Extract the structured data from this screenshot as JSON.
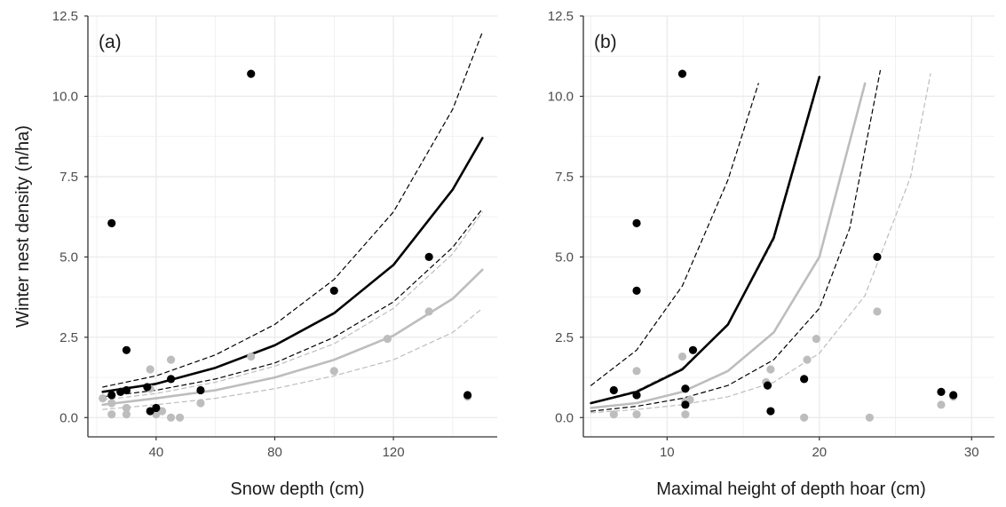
{
  "colors": {
    "group_a": "#000000",
    "group_b": "#bdbdbd",
    "grid": "#ebebeb",
    "axis": "#333333"
  },
  "shared": {
    "ylabel": "Winter nest density (n/ha)"
  },
  "chart_data": [
    {
      "type": "scatter",
      "panel_label": "(a)",
      "xlabel": "Snow depth (cm)",
      "ylabel": "Winter nest density (n/ha)",
      "xlim": [
        17,
        155
      ],
      "ylim": [
        -0.6,
        12.5
      ],
      "x_ticks": [
        40,
        80,
        120
      ],
      "y_ticks": [
        0.0,
        2.5,
        5.0,
        7.5,
        10.0,
        12.5
      ],
      "y_tick_labels": [
        "0.0",
        "2.5",
        "5.0",
        "7.5",
        "10.0",
        "12.5"
      ],
      "grid": true,
      "series": [
        {
          "color": "black",
          "points": [
            [
              25,
              6.05
            ],
            [
              25,
              0.7
            ],
            [
              28,
              0.8
            ],
            [
              30,
              2.1
            ],
            [
              30,
              0.85
            ],
            [
              37,
              0.95
            ],
            [
              38,
              0.2
            ],
            [
              40,
              0.3
            ],
            [
              45,
              1.2
            ],
            [
              55,
              0.85
            ],
            [
              72,
              10.7
            ],
            [
              100,
              3.95
            ],
            [
              132,
              5.0
            ],
            [
              145,
              0.7
            ]
          ],
          "fit": {
            "x": [
              22,
              40,
              60,
              80,
              100,
              120,
              140,
              150
            ],
            "y": [
              0.8,
              1.05,
              1.55,
              2.25,
              3.25,
              4.75,
              7.1,
              8.7
            ]
          },
          "ci_upper": {
            "x": [
              22,
              40,
              60,
              80,
              100,
              120,
              140,
              150
            ],
            "y": [
              0.95,
              1.3,
              1.95,
              2.9,
              4.3,
              6.4,
              9.6,
              12.0
            ]
          },
          "ci_lower": {
            "x": [
              22,
              40,
              60,
              80,
              100,
              120,
              140,
              150
            ],
            "y": [
              0.65,
              0.85,
              1.2,
              1.7,
              2.5,
              3.6,
              5.3,
              6.5
            ]
          }
        },
        {
          "color": "grey",
          "points": [
            [
              22,
              0.6
            ],
            [
              25,
              0.1
            ],
            [
              25,
              0.45
            ],
            [
              28,
              0.8
            ],
            [
              30,
              0.3
            ],
            [
              30,
              0.1
            ],
            [
              38,
              1.5
            ],
            [
              38,
              0.9
            ],
            [
              40,
              0.1
            ],
            [
              42,
              0.2
            ],
            [
              45,
              1.8
            ],
            [
              45,
              0.0
            ],
            [
              48,
              0.0
            ],
            [
              55,
              0.45
            ],
            [
              72,
              1.9
            ],
            [
              100,
              1.45
            ],
            [
              118,
              2.45
            ],
            [
              132,
              3.3
            ],
            [
              145,
              0.65
            ]
          ],
          "fit": {
            "x": [
              22,
              40,
              60,
              80,
              100,
              120,
              140,
              150
            ],
            "y": [
              0.4,
              0.6,
              0.85,
              1.25,
              1.8,
              2.55,
              3.7,
              4.6
            ]
          },
          "ci_upper": {
            "x": [
              22,
              40,
              60,
              80,
              100,
              120,
              140,
              150
            ],
            "y": [
              0.55,
              0.75,
              1.1,
              1.6,
              2.3,
              3.4,
              5.1,
              6.4
            ]
          },
          "ci_lower": {
            "x": [
              22,
              40,
              60,
              80,
              100,
              120,
              140,
              150
            ],
            "y": [
              0.25,
              0.4,
              0.6,
              0.9,
              1.3,
              1.8,
              2.65,
              3.4
            ]
          }
        }
      ]
    },
    {
      "type": "scatter",
      "panel_label": "(b)",
      "xlabel": "Maximal height of depth hoar (cm)",
      "ylabel": "Winter nest density (n/ha)",
      "xlim": [
        4.5,
        31.5
      ],
      "ylim": [
        -0.6,
        12.5
      ],
      "x_ticks": [
        10,
        20,
        30
      ],
      "y_ticks": [
        0.0,
        2.5,
        5.0,
        7.5,
        10.0,
        12.5
      ],
      "y_tick_labels": [
        "0.0",
        "2.5",
        "5.0",
        "7.5",
        "10.0",
        "12.5"
      ],
      "grid": true,
      "series": [
        {
          "color": "black",
          "points": [
            [
              6.5,
              0.85
            ],
            [
              8,
              6.05
            ],
            [
              8,
              3.95
            ],
            [
              8,
              0.7
            ],
            [
              11,
              10.7
            ],
            [
              11.2,
              0.9
            ],
            [
              11.2,
              0.4
            ],
            [
              11.7,
              2.1
            ],
            [
              16.6,
              1.0
            ],
            [
              16.8,
              0.2
            ],
            [
              19,
              1.2
            ],
            [
              23.8,
              5.0
            ],
            [
              28,
              0.8
            ],
            [
              28.8,
              0.7
            ]
          ],
          "fit": {
            "x": [
              5,
              8,
              11,
              14,
              17,
              20
            ],
            "y": [
              0.45,
              0.8,
              1.5,
              2.9,
              5.6,
              10.6
            ]
          },
          "ci_upper": {
            "x": [
              5,
              8,
              11,
              14,
              16
            ],
            "y": [
              1.0,
              2.1,
              4.1,
              7.4,
              10.4
            ]
          },
          "ci_lower": {
            "x": [
              5,
              8,
              11,
              14,
              17,
              20,
              22,
              24
            ],
            "y": [
              0.2,
              0.35,
              0.6,
              1.0,
              1.8,
              3.4,
              5.9,
              10.8
            ]
          }
        },
        {
          "color": "grey",
          "points": [
            [
              6.5,
              0.1
            ],
            [
              8,
              1.45
            ],
            [
              8,
              0.1
            ],
            [
              11,
              1.9
            ],
            [
              11.2,
              0.5
            ],
            [
              11.2,
              0.1
            ],
            [
              11.5,
              0.55
            ],
            [
              16.5,
              1.1
            ],
            [
              16.8,
              1.5
            ],
            [
              19,
              0.0
            ],
            [
              19.2,
              1.8
            ],
            [
              19.8,
              2.45
            ],
            [
              23.3,
              0.0
            ],
            [
              23.8,
              3.3
            ],
            [
              28,
              0.4
            ],
            [
              28.8,
              0.65
            ]
          ],
          "fit": {
            "x": [
              5,
              8,
              11,
              14,
              17,
              20,
              23
            ],
            "y": [
              0.3,
              0.45,
              0.8,
              1.45,
              2.65,
              5.0,
              10.4
            ]
          },
          "ci_upper": {
            "x": [
              5,
              8,
              11,
              14,
              17,
              19.7
            ],
            "y": [
              0.45,
              0.85,
              1.55,
              2.9,
              5.5,
              10.0
            ]
          },
          "ci_lower": {
            "x": [
              5,
              8,
              11,
              14,
              17,
              20,
              23,
              26,
              27.3
            ],
            "y": [
              0.15,
              0.25,
              0.4,
              0.65,
              1.1,
              2.0,
              3.8,
              7.5,
              10.7
            ]
          }
        }
      ]
    }
  ]
}
